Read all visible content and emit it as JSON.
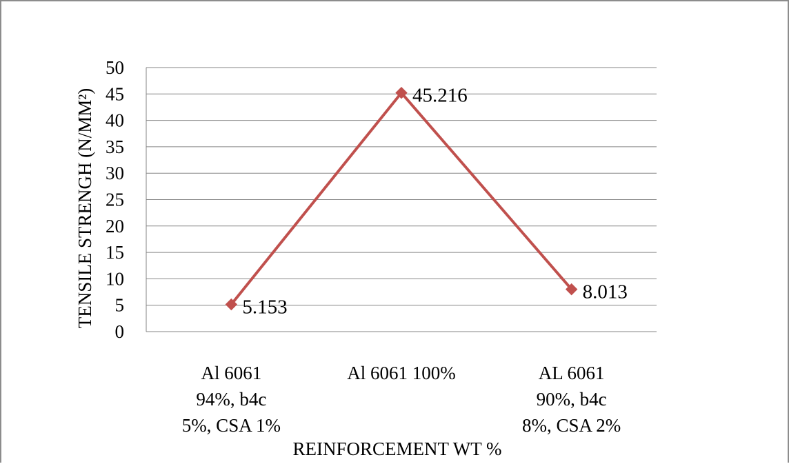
{
  "chart_data": {
    "type": "line",
    "title": "",
    "xlabel": "REINFORCEMENT  WT %",
    "ylabel": "TENSILE  STRENGH (N/MM²)",
    "ylim": [
      0,
      50
    ],
    "yticks": [
      "0",
      "5",
      "10",
      "15",
      "20",
      "25",
      "30",
      "35",
      "40",
      "45",
      "50"
    ],
    "grid": true,
    "legend": "none",
    "categories": [
      [
        "Al 6061",
        "94%, b4c",
        "5%, CSA 1%"
      ],
      [
        "Al 6061 100%"
      ],
      [
        "AL 6061",
        "90%, b4c",
        "8%, CSA 2%"
      ]
    ],
    "series": [
      {
        "values": [
          5.153,
          45.216,
          8.013
        ],
        "labels": [
          "5.153",
          "45.216",
          "8.013"
        ],
        "color": "#C0504D"
      }
    ]
  }
}
